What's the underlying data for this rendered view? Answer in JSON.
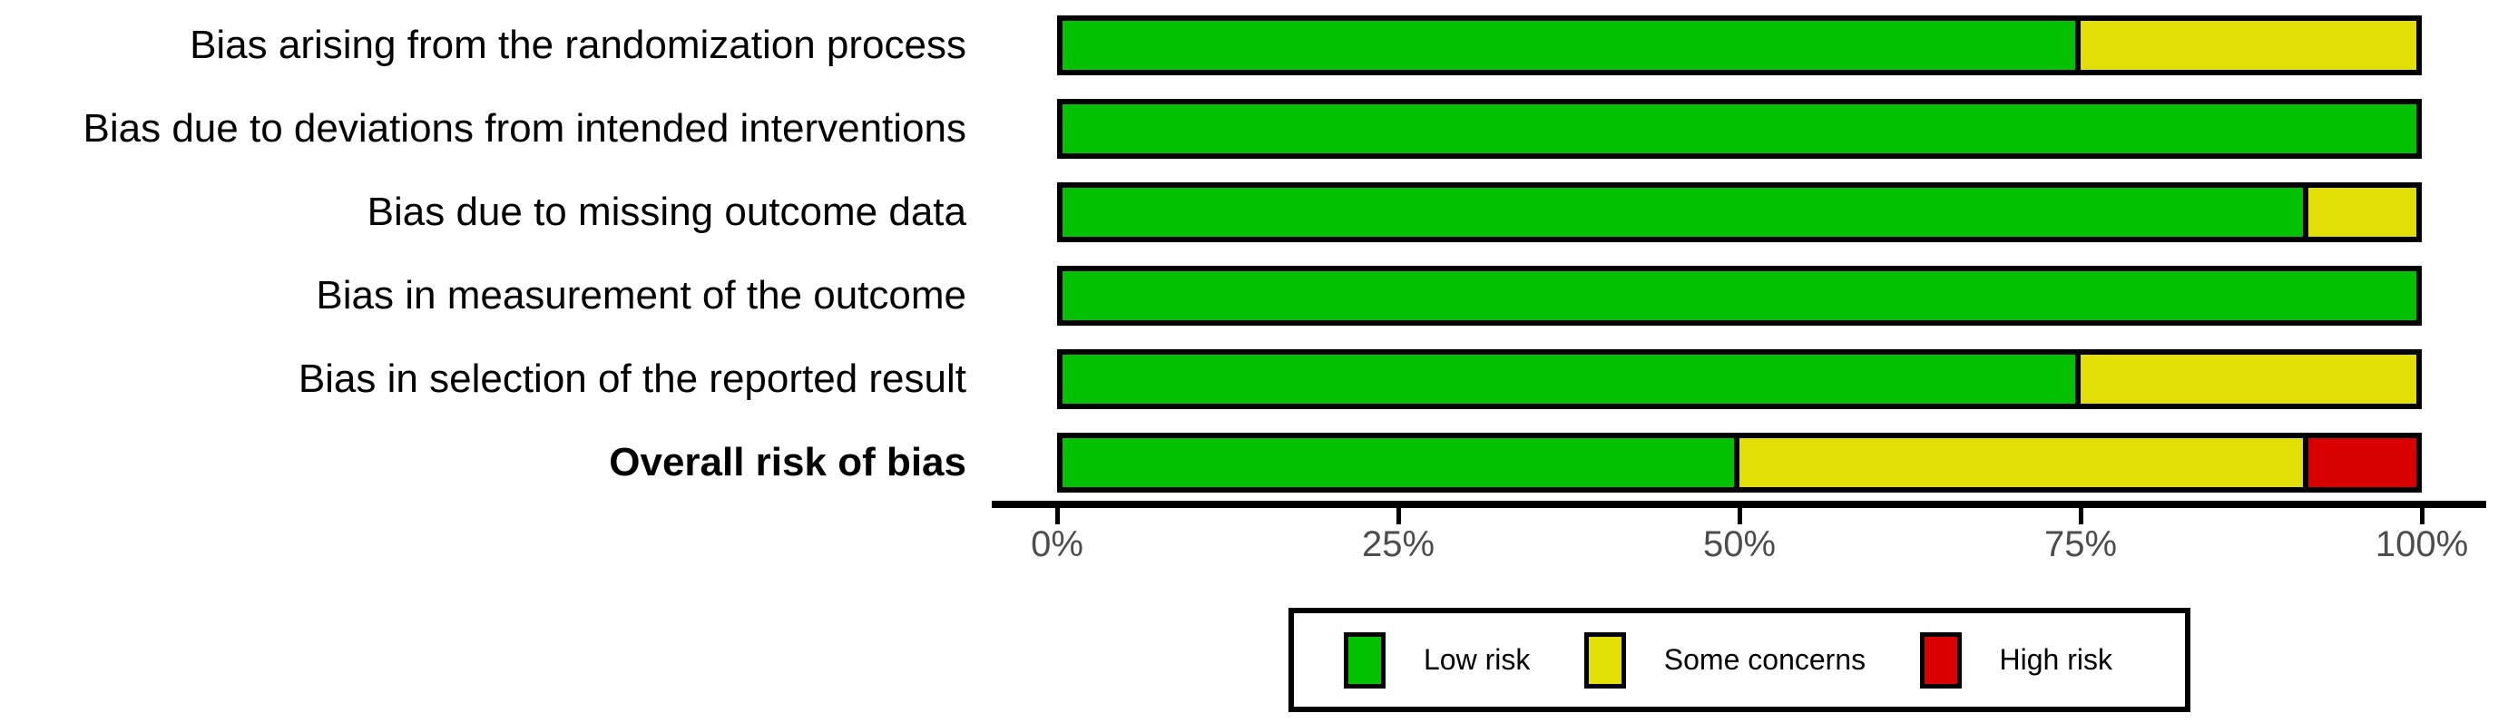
{
  "chart_data": {
    "type": "bar",
    "subtype": "horizontal-stacked-percentage",
    "title": "",
    "categories": [
      {
        "label": "Bias arising from the randomization process",
        "bold": false
      },
      {
        "label": "Bias due to deviations from intended interventions",
        "bold": false
      },
      {
        "label": "Bias due to missing outcome data",
        "bold": false
      },
      {
        "label": "Bias in measurement of the outcome",
        "bold": false
      },
      {
        "label": "Bias in selection of the reported result",
        "bold": false
      },
      {
        "label": "Overall risk of bias",
        "bold": true
      }
    ],
    "series": [
      {
        "name": "Low risk",
        "color": "#02C100",
        "values": [
          75,
          100,
          91.7,
          100,
          75,
          50
        ]
      },
      {
        "name": "Some concerns",
        "color": "#E2DF07",
        "values": [
          25,
          0,
          8.3,
          0,
          25,
          41.7
        ]
      },
      {
        "name": "High risk",
        "color": "#D80000",
        "values": [
          0,
          0,
          0,
          0,
          0,
          8.3
        ]
      }
    ],
    "x_axis": {
      "tick_labels": [
        "0%",
        "25%",
        "50%",
        "75%",
        "100%"
      ],
      "tick_values": [
        0,
        25,
        50,
        75,
        100
      ],
      "range": [
        0,
        100
      ]
    },
    "legend": {
      "position": "bottom",
      "items": [
        {
          "label": "Low risk",
          "color": "#02C100"
        },
        {
          "label": "Some concerns",
          "color": "#E2DF07"
        },
        {
          "label": "High risk",
          "color": "#D80000"
        }
      ]
    },
    "grid": false
  },
  "colors": {
    "background": "#FFFFFF",
    "bar_border": "#000000",
    "axis": "#000000",
    "tick_label": "#4D4D4D"
  }
}
